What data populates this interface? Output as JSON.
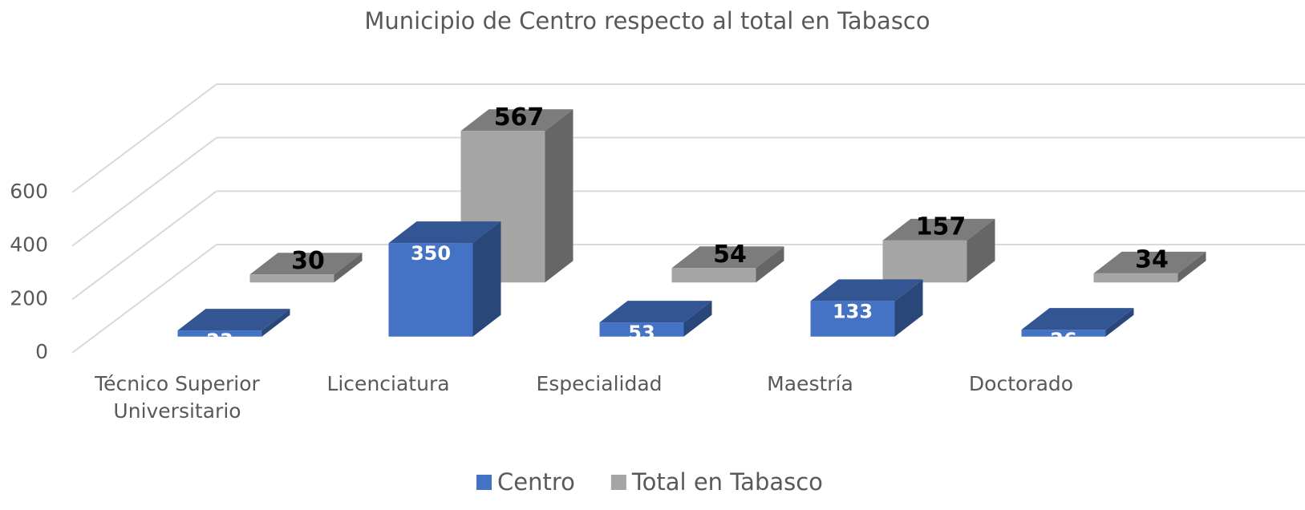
{
  "chart_data": {
    "type": "bar3d",
    "title": "Municipio de Centro respecto al total en Tabasco",
    "categories": [
      "Técnico Superior Universitario",
      "Licenciatura",
      "Especialidad",
      "Maestría",
      "Doctorado"
    ],
    "series": [
      {
        "name": "Centro",
        "color": "#4472c4",
        "values": [
          23,
          350,
          53,
          133,
          26
        ]
      },
      {
        "name": "Total en Tabasco",
        "color": "#a5a5a5",
        "values": [
          30,
          567,
          54,
          157,
          34
        ]
      }
    ],
    "ylim": [
      0,
      600
    ],
    "yticks": [
      0,
      200,
      400,
      600
    ],
    "grid": true,
    "legend": "bottom"
  }
}
